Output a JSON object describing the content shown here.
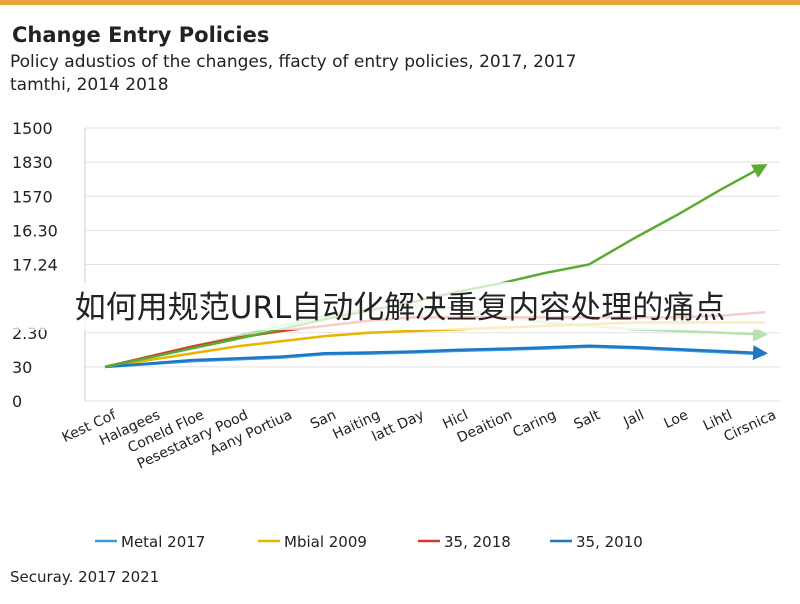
{
  "chart_data": {
    "type": "line",
    "title": "Change Entry Policies",
    "subtitle": [
      "Policy adustios of the changes, ffacty of entry policies, 2017, 2017",
      "tamthi, 2014 2018"
    ],
    "overlay_text": "如何用规范URL自动化解决重复内容处理的痛点",
    "footer": "Securay. 2017 2021",
    "categories": [
      "Kest Cof",
      "Halagees",
      "Coneld Floe",
      "Pesestatary Pood",
      "Aany Portiua",
      "San",
      "Haiting",
      "latt Day",
      "Hicl",
      "Deaition",
      "Caring",
      "Salt",
      "Jall",
      "Loe",
      "Lihtl",
      "Cirsnica"
    ],
    "ylim": [
      0,
      8
    ],
    "yticks": [
      0,
      {
        "value": 1,
        "label": "30"
      },
      {
        "value": 2,
        "label": "2.30"
      },
      {
        "value": 4,
        "label": "17.24"
      },
      {
        "value": 5,
        "label": "16.30"
      },
      {
        "value": 6,
        "label": "1570"
      },
      {
        "value": 7,
        "label": "1830"
      },
      {
        "value": 8,
        "label": "1500"
      }
    ],
    "grid": true,
    "series": [
      {
        "name": "Metal 2017",
        "color": "#3a9ad9",
        "values": [
          1,
          1.08,
          1.17,
          1.22,
          1.27,
          1.37,
          1.39,
          1.42,
          1.47,
          1.5,
          1.54,
          1.59,
          1.55,
          1.49,
          1.43,
          1.37
        ]
      },
      {
        "name": "Mbial 2009",
        "color": "#e8b400",
        "values": [
          1,
          1.2,
          1.4,
          1.6,
          1.75,
          1.9,
          2.0,
          2.05,
          2.1,
          2.15,
          2.2,
          2.25,
          2.3,
          2.3,
          2.3,
          2.3
        ]
      },
      {
        "name": "35, 2018",
        "color": "#d63a2a",
        "values": [
          1,
          1.3,
          1.6,
          1.85,
          2.05,
          2.2,
          2.35,
          2.45,
          2.45,
          2.45,
          2.45,
          2.45,
          2.45,
          2.45,
          2.5,
          2.6
        ]
      },
      {
        "name": "35, 2010",
        "color": "#1f77c4",
        "values": [
          1,
          1.1,
          1.2,
          1.25,
          1.3,
          1.4,
          1.42,
          1.45,
          1.5,
          1.53,
          1.57,
          1.62,
          1.58,
          1.52,
          1.46,
          1.4
        ]
      },
      {
        "color": "#b8e0b0",
        "values": [
          1,
          1.3,
          1.6,
          1.9,
          2.2,
          2.5,
          2.7,
          2.8,
          2.7,
          2.5,
          2.3,
          2.2,
          2.1,
          2.05,
          2.0,
          1.95
        ]
      },
      {
        "color": "#5aab32",
        "values": [
          1,
          1.27,
          1.55,
          1.82,
          2.1,
          2.4,
          2.65,
          2.9,
          3.2,
          3.45,
          3.75,
          4.0,
          4.75,
          5.45,
          6.2,
          6.9
        ]
      }
    ]
  }
}
